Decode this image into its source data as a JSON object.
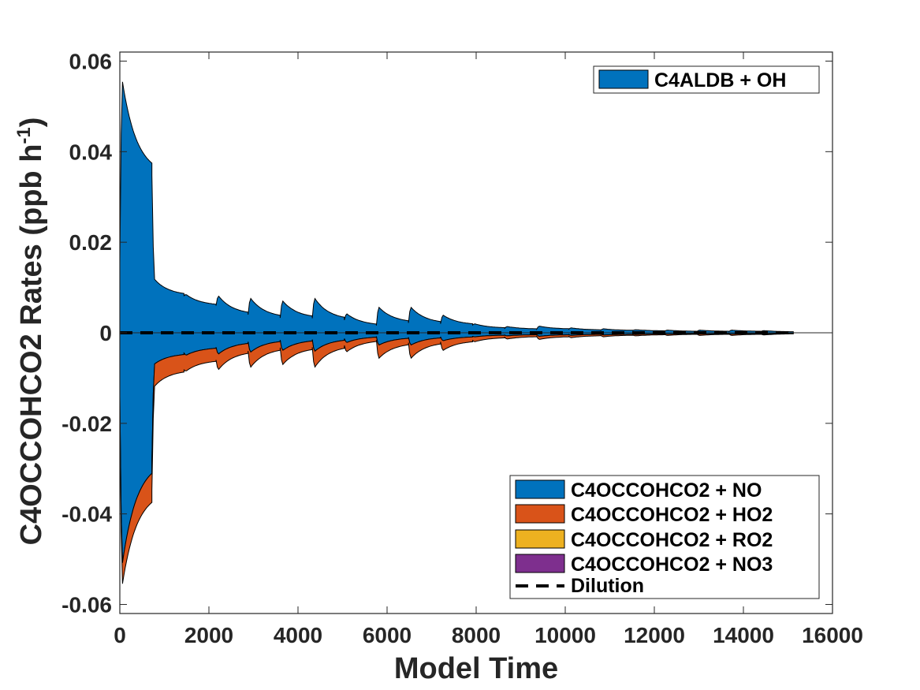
{
  "chart_data": {
    "type": "area",
    "xlabel": "Model Time",
    "ylabel": "C4OCCOHCO2 Rates (ppb h",
    "ylabel_sup": "-1",
    "ylabel_close": ")",
    "xlim": [
      0,
      16000
    ],
    "ylim": [
      -0.062,
      0.062
    ],
    "x_ticks": [
      0,
      2000,
      4000,
      6000,
      8000,
      10000,
      12000,
      14000,
      16000
    ],
    "x_tick_labels": [
      "0",
      "2000",
      "4000",
      "6000",
      "8000",
      "10000",
      "12000",
      "14000",
      "16000"
    ],
    "y_ticks": [
      0.06,
      0.04,
      0.02,
      0,
      -0.02,
      -0.04,
      -0.06
    ],
    "y_tick_labels": [
      "0.06",
      "0.04",
      "0.02",
      "0",
      "-0.02",
      "-0.04",
      "-0.06"
    ],
    "grid": false,
    "day_period": 720,
    "x_end": 15120,
    "production": [
      {
        "name": "C4ALDB + OH",
        "color": "#0072BD",
        "day_peaks": [
          0.0565,
          0.012,
          0.0085,
          0.0083,
          0.0078,
          0.0072,
          0.0078,
          0.0043,
          0.0058,
          0.0058,
          0.004,
          0.002,
          0.0014,
          0.0015,
          0.0011,
          0.0009,
          0.0007,
          0.0006,
          0.0006,
          0.0006,
          0.0005
        ],
        "day_mins": [
          0.0347,
          0.0082,
          0.006,
          0.004,
          0.0033,
          0.0032,
          0.0028,
          0.0016,
          0.0022,
          0.002,
          0.0017,
          0.001,
          0.0008,
          0.0008,
          0.0006,
          0.0005,
          0.0004,
          0.0003,
          0.0003,
          0.0003,
          0.0002
        ]
      }
    ],
    "loss": [
      {
        "name": "C4OCCOHCO2 + NO",
        "color": "#0072BD",
        "day_peaks": [
          0.052,
          0.007,
          0.005,
          0.0048,
          0.0044,
          0.004,
          0.0042,
          0.0022,
          0.0028,
          0.0028,
          0.0018,
          0.0009,
          0.0007,
          0.0008,
          0.0006,
          0.0005,
          0.0004,
          0.0003,
          0.0003,
          0.0003,
          0.0003
        ],
        "day_mins": [
          0.028,
          0.0045,
          0.0032,
          0.002,
          0.0016,
          0.0015,
          0.0013,
          0.0008,
          0.001,
          0.0009,
          0.0008,
          0.0005,
          0.0004,
          0.0004,
          0.0003,
          0.0003,
          0.0002,
          0.0002,
          0.0002,
          0.0002,
          0.0001
        ]
      },
      {
        "name": "C4OCCOHCO2 + HO2",
        "color": "#D95319",
        "day_peaks": [
          0.0045,
          0.005,
          0.0035,
          0.0035,
          0.0034,
          0.0032,
          0.0036,
          0.0021,
          0.003,
          0.003,
          0.0022,
          0.0011,
          0.0007,
          0.0007,
          0.0005,
          0.0004,
          0.0003,
          0.0003,
          0.0003,
          0.0003,
          0.0002
        ],
        "day_mins": [
          0.0067,
          0.0037,
          0.0028,
          0.002,
          0.0017,
          0.0017,
          0.0015,
          0.0008,
          0.0012,
          0.0011,
          0.0009,
          0.0005,
          0.0004,
          0.0004,
          0.0003,
          0.0002,
          0.0002,
          0.0001,
          0.0001,
          0.0001,
          0.0001
        ]
      },
      {
        "name": "C4OCCOHCO2 + RO2",
        "color": "#EDB120",
        "day_peaks": [],
        "day_mins": []
      },
      {
        "name": "C4OCCOHCO2 + NO3",
        "color": "#7E2F8E",
        "day_peaks": [],
        "day_mins": []
      }
    ],
    "dilution": {
      "name": "Dilution",
      "style": "dashed",
      "color": "#000000",
      "value": 0
    },
    "legend_top": {
      "position": "top-right",
      "entries": [
        "C4ALDB + OH"
      ]
    },
    "legend_bottom": {
      "position": "bottom-right",
      "entries": [
        "C4OCCOHCO2 + NO",
        "C4OCCOHCO2 + HO2",
        "C4OCCOHCO2 + RO2",
        "C4OCCOHCO2 + NO3",
        "Dilution"
      ]
    }
  }
}
